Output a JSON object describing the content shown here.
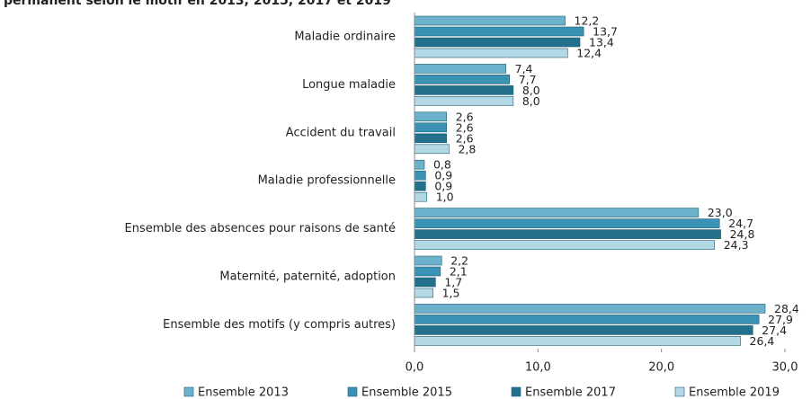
{
  "chart_data": {
    "type": "hbar",
    "title": "permanent selon le motif en 2013, 2015, 2017 et 2019",
    "categories": [
      "Maladie ordinaire",
      "Longue maladie",
      "Accident du travail",
      "Maladie professionnelle",
      "Ensemble des absences pour raisons de santé",
      "Maternité, paternité, adoption",
      "Ensemble des motifs (y compris autres)"
    ],
    "series": [
      {
        "name": "Ensemble 2013",
        "color": "#6cb2cc",
        "values": [
          12.2,
          7.4,
          2.6,
          0.8,
          23.0,
          2.2,
          28.4
        ],
        "value_labels": [
          "12,2",
          "7,4",
          "2,6",
          "0,8",
          "23,0",
          "2,2",
          "28,4"
        ]
      },
      {
        "name": "Ensemble 2015",
        "color": "#3a93b4",
        "values": [
          13.7,
          7.7,
          2.6,
          0.9,
          24.7,
          2.1,
          27.9
        ],
        "value_labels": [
          "13,7",
          "7,7",
          "2,6",
          "0,9",
          "24,7",
          "2,1",
          "27,9"
        ]
      },
      {
        "name": "Ensemble 2017",
        "color": "#22708b",
        "values": [
          13.4,
          8.0,
          2.6,
          0.9,
          24.8,
          1.7,
          27.4
        ],
        "value_labels": [
          "13,4",
          "8,0",
          "2,6",
          "0,9",
          "24,8",
          "1,7",
          "27,4"
        ]
      },
      {
        "name": "Ensemble 2019",
        "color": "#b3d9e7",
        "values": [
          12.4,
          8.0,
          2.8,
          1.0,
          24.3,
          1.5,
          26.4
        ],
        "value_labels": [
          "12,4",
          "8,0",
          "2,8",
          "1,0",
          "24,3",
          "1,5",
          "26,4"
        ]
      }
    ],
    "xlim": [
      0,
      30
    ],
    "xticks": [
      {
        "value": 0,
        "label": "0,0"
      },
      {
        "value": 10,
        "label": "10,0"
      },
      {
        "value": 20,
        "label": "20,0"
      },
      {
        "value": 30,
        "label": "30,0"
      }
    ],
    "legend": "bottom"
  }
}
